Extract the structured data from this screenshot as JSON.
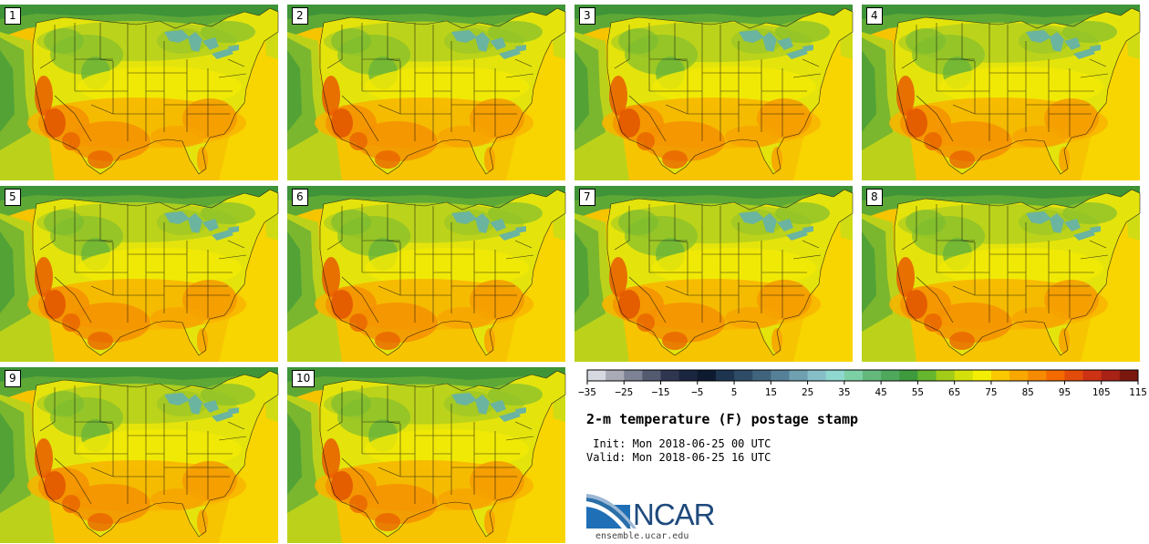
{
  "panels": [
    {
      "label": "1"
    },
    {
      "label": "2"
    },
    {
      "label": "3"
    },
    {
      "label": "4"
    },
    {
      "label": "5"
    },
    {
      "label": "6"
    },
    {
      "label": "7"
    },
    {
      "label": "8"
    },
    {
      "label": "9"
    },
    {
      "label": "10"
    }
  ],
  "colorbar": {
    "colors": [
      "#d6d9e0",
      "#a9acb6",
      "#7d8294",
      "#545b70",
      "#2e3650",
      "#1a2540",
      "#0e1a30",
      "#1e3550",
      "#2e4c66",
      "#40647c",
      "#568097",
      "#6ea0b0",
      "#86bfc8",
      "#8ed8d0",
      "#7dcfa4",
      "#64b87c",
      "#50a85c",
      "#3e9a3c",
      "#66b62e",
      "#a2cc18",
      "#d4e00a",
      "#f2ee06",
      "#fac800",
      "#f8a800",
      "#f68a00",
      "#f26a00",
      "#e24c0a",
      "#cc3214",
      "#a82216",
      "#7a1810"
    ],
    "ticks": [
      "−35",
      "−25",
      "−15",
      "−5",
      "5",
      "15",
      "25",
      "35",
      "45",
      "55",
      "65",
      "75",
      "85",
      "95",
      "105",
      "115"
    ]
  },
  "title": "2-m temperature (F) postage stamp",
  "init": " Init: Mon 2018-06-25 00 UTC",
  "valid": "Valid: Mon 2018-06-25 16 UTC",
  "logo": {
    "name": "NCAR",
    "url": "ensemble.ucar.edu"
  }
}
